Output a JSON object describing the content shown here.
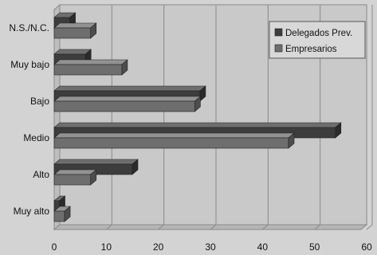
{
  "chart_data": {
    "type": "bar",
    "orientation": "horizontal",
    "style": "3d",
    "categories": [
      "N.S./N.C.",
      "Muy bajo",
      "Bajo",
      "Medio",
      "Alto",
      "Muy alto"
    ],
    "series": [
      {
        "name": "Delegados Prev.",
        "values": [
          3,
          6,
          28,
          54,
          15,
          1
        ],
        "color": "#3d3d3d"
      },
      {
        "name": "Empresarios",
        "values": [
          7,
          13,
          27,
          45,
          7,
          2
        ],
        "color": "#6e6e6e"
      }
    ],
    "xlim": [
      0,
      60
    ],
    "xticks": [
      0,
      10,
      20,
      30,
      40,
      50,
      60
    ],
    "legend_position": "top-right",
    "gridlines": true
  }
}
